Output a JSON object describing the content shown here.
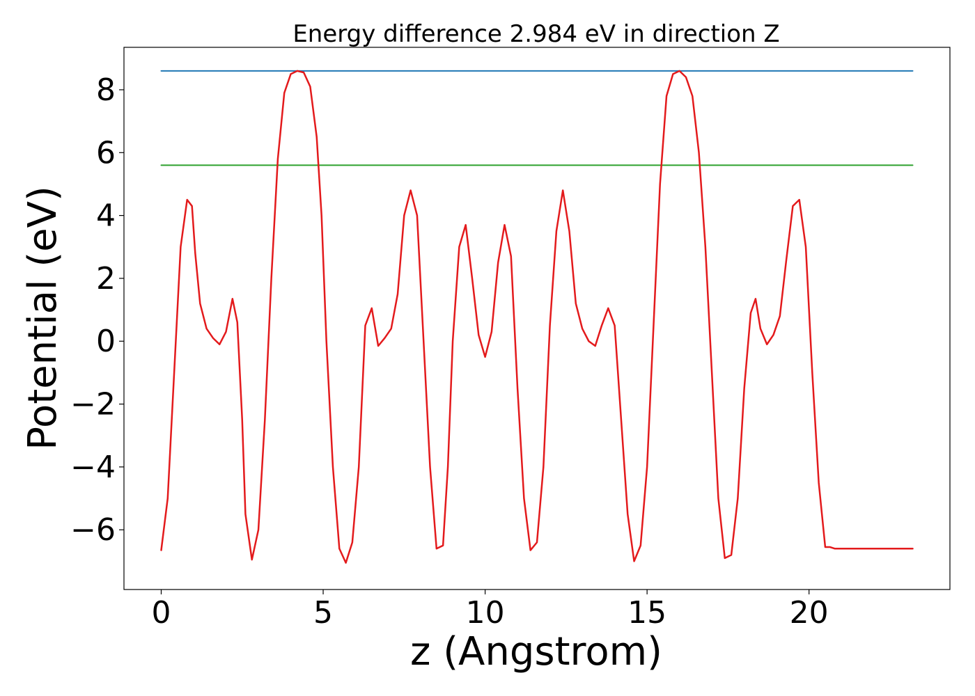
{
  "chart_data": {
    "type": "line",
    "title": "Energy difference 2.984 eV in direction Z",
    "xlabel": "z (Angstrom)",
    "ylabel": "Potential (eV)",
    "xlim": [
      -1.15,
      24.35
    ],
    "ylim": [
      -7.9,
      9.35
    ],
    "xticks": [
      0,
      5,
      10,
      15,
      20
    ],
    "xtick_labels": [
      "0",
      "5",
      "10",
      "15",
      "20"
    ],
    "yticks": [
      -6,
      -4,
      -2,
      0,
      2,
      4,
      6,
      8
    ],
    "ytick_labels": [
      "−6",
      "−4",
      "−2",
      "0",
      "2",
      "4",
      "6",
      "8"
    ],
    "grid": false,
    "series": [
      {
        "color": "#1f77b4",
        "x": [
          0,
          23.2
        ],
        "y": [
          8.6,
          8.6
        ]
      },
      {
        "color": "#2ca02c",
        "x": [
          0,
          23.2
        ],
        "y": [
          5.6,
          5.6
        ]
      },
      {
        "color": "#e31a1c",
        "x": [
          0,
          0.2,
          0.4,
          0.6,
          0.8,
          0.95,
          1.05,
          1.2,
          1.4,
          1.6,
          1.8,
          2.0,
          2.2,
          2.35,
          2.5,
          2.6,
          2.8,
          3.0,
          3.2,
          3.4,
          3.6,
          3.8,
          4.0,
          4.2,
          4.4,
          4.6,
          4.8,
          4.95,
          5.1,
          5.3,
          5.5,
          5.7,
          5.9,
          6.1,
          6.3,
          6.5,
          6.7,
          6.9,
          7.1,
          7.3,
          7.5,
          7.7,
          7.9,
          8.1,
          8.3,
          8.5,
          8.7,
          8.85,
          9.0,
          9.2,
          9.4,
          9.6,
          9.8,
          10.0,
          10.2,
          10.4,
          10.6,
          10.8,
          11.0,
          11.2,
          11.4,
          11.6,
          11.8,
          12.0,
          12.2,
          12.4,
          12.6,
          12.8,
          13.0,
          13.2,
          13.4,
          13.6,
          13.8,
          14.0,
          14.2,
          14.4,
          14.6,
          14.8,
          15.0,
          15.2,
          15.4,
          15.6,
          15.8,
          16.0,
          16.2,
          16.4,
          16.6,
          16.8,
          17.0,
          17.2,
          17.4,
          17.6,
          17.8,
          18.0,
          18.2,
          18.35,
          18.5,
          18.7,
          18.9,
          19.1,
          19.3,
          19.5,
          19.7,
          19.9,
          20.1,
          20.3,
          20.5,
          20.65,
          20.8,
          21.0,
          21.2,
          21.4,
          21.6,
          21.8,
          22.0,
          22.2,
          22.4,
          22.6,
          22.8,
          23.0,
          23.2
        ],
        "y": [
          -6.65,
          -5.0,
          -1.0,
          3.0,
          4.5,
          4.3,
          2.8,
          1.2,
          0.4,
          0.1,
          -0.1,
          0.3,
          1.35,
          0.6,
          -2.5,
          -5.5,
          -6.95,
          -6.0,
          -2.5,
          2.0,
          5.8,
          7.9,
          8.5,
          8.6,
          8.55,
          8.1,
          6.5,
          4.0,
          0.0,
          -4.0,
          -6.6,
          -7.05,
          -6.4,
          -4.0,
          0.5,
          1.05,
          -0.15,
          0.1,
          0.4,
          1.5,
          4.0,
          4.8,
          4.0,
          0.0,
          -4.0,
          -6.6,
          -6.5,
          -4.0,
          0.0,
          3.0,
          3.7,
          2.0,
          0.2,
          -0.5,
          0.3,
          2.5,
          3.7,
          2.7,
          -1.5,
          -5.0,
          -6.65,
          -6.4,
          -4.0,
          0.5,
          3.5,
          4.8,
          3.5,
          1.2,
          0.4,
          0.0,
          -0.15,
          0.5,
          1.05,
          0.5,
          -2.5,
          -5.5,
          -7.0,
          -6.5,
          -4.0,
          0.5,
          5.0,
          7.8,
          8.5,
          8.6,
          8.4,
          7.8,
          6.0,
          3.0,
          -1.0,
          -5.0,
          -6.9,
          -6.8,
          -5.0,
          -1.5,
          0.9,
          1.35,
          0.4,
          -0.1,
          0.2,
          0.8,
          2.6,
          4.3,
          4.5,
          3.0,
          -1.0,
          -4.5,
          -6.55,
          -6.55,
          -6.6,
          -6.6,
          -6.6,
          -6.6,
          -6.6,
          -6.6,
          -6.6,
          -6.6,
          -6.6,
          -6.6,
          -6.6,
          -6.6,
          -6.6
        ]
      }
    ]
  }
}
